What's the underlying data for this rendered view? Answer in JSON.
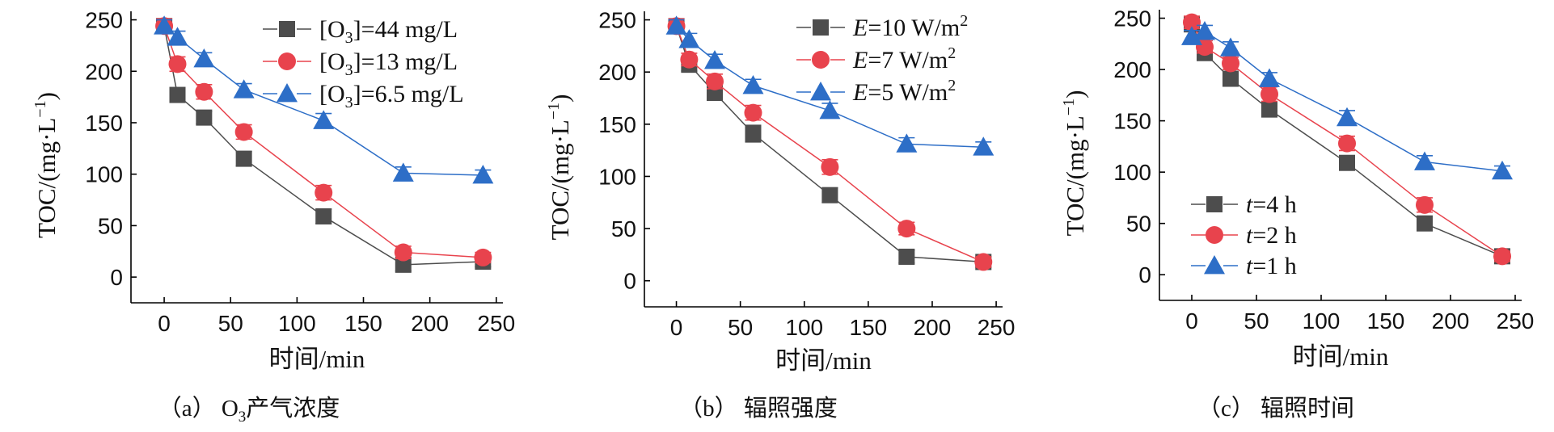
{
  "figure": {
    "colors": {
      "s1": "#4d4d4d",
      "s2": "#e8434d",
      "s3": "#2d6ec7"
    },
    "panels": [
      {
        "caption": {
          "prefix": "（a） O",
          "sub": "3",
          "suffix": "产气浓度"
        },
        "legend": [
          {
            "pre": "[O",
            "sub": "3",
            "post": "]=44 mg/L",
            "italic": "",
            "sup": ""
          },
          {
            "pre": "[O",
            "sub": "3",
            "post": "]=13 mg/L",
            "italic": "",
            "sup": ""
          },
          {
            "pre": "[O",
            "sub": "3",
            "post": "]=6.5 mg/L",
            "italic": "",
            "sup": ""
          }
        ]
      },
      {
        "caption": {
          "prefix": "（b） 辐照强度",
          "sub": "",
          "suffix": ""
        },
        "legend": [
          {
            "pre": "",
            "sub": "",
            "italic": "E",
            "post": "=10 W/m",
            "sup": "2"
          },
          {
            "pre": "",
            "sub": "",
            "italic": "E",
            "post": "=7 W/m",
            "sup": "2"
          },
          {
            "pre": "",
            "sub": "",
            "italic": "E",
            "post": "=5 W/m",
            "sup": "2"
          }
        ]
      },
      {
        "caption": {
          "prefix": "（c） 辐照时间",
          "sub": "",
          "suffix": ""
        },
        "legend": [
          {
            "pre": "",
            "sub": "",
            "italic": "t",
            "post": "=4 h",
            "sup": ""
          },
          {
            "pre": "",
            "sub": "",
            "italic": "t",
            "post": "=2 h",
            "sup": ""
          },
          {
            "pre": "",
            "sub": "",
            "italic": "t",
            "post": "=1 h",
            "sup": ""
          }
        ]
      }
    ]
  },
  "chart_data": [
    {
      "type": "line",
      "title": "(a) O3产气浓度",
      "xlabel": "时间/min",
      "ylabel": {
        "main": "TOC/(mg·L",
        "sup": "−1",
        "close": ")"
      },
      "xlim": [
        -25,
        255
      ],
      "ylim": [
        -25,
        252
      ],
      "xticks": [
        0,
        50,
        100,
        150,
        200,
        250
      ],
      "yticks": [
        0,
        50,
        100,
        150,
        200,
        250
      ],
      "legend_position": "top-right",
      "series": [
        {
          "name": "[O3]=44 mg/L",
          "marker": "square",
          "x": [
            0,
            10,
            30,
            60,
            120,
            180,
            240
          ],
          "y": [
            244,
            177,
            155,
            115,
            59,
            12,
            15
          ],
          "err": [
            7,
            7,
            6,
            7,
            7,
            6,
            5
          ]
        },
        {
          "name": "[O3]=13 mg/L",
          "marker": "circle",
          "x": [
            0,
            10,
            30,
            60,
            120,
            180,
            240
          ],
          "y": [
            244,
            207,
            180,
            141,
            82,
            24,
            19
          ],
          "err": [
            7,
            7,
            7,
            7,
            7,
            6,
            5
          ]
        },
        {
          "name": "[O3]=6.5 mg/L",
          "marker": "triangle",
          "x": [
            0,
            10,
            30,
            60,
            120,
            180,
            240
          ],
          "y": [
            244,
            233,
            212,
            182,
            152,
            101,
            99
          ],
          "err": [
            6,
            6,
            6,
            6,
            7,
            6,
            5
          ]
        }
      ]
    },
    {
      "type": "line",
      "title": "(b) 辐照强度",
      "xlabel": "时间/min",
      "ylabel": {
        "main": "TOC/(mg·L",
        "sup": "−1",
        "close": ")"
      },
      "xlim": [
        -25,
        255
      ],
      "ylim": [
        -25,
        252
      ],
      "xticks": [
        0,
        50,
        100,
        150,
        200,
        250
      ],
      "yticks": [
        0,
        50,
        100,
        150,
        200,
        250
      ],
      "legend_position": "top-right",
      "series": [
        {
          "name": "E=10 W/m2",
          "marker": "square",
          "x": [
            0,
            10,
            30,
            60,
            120,
            180,
            240
          ],
          "y": [
            244,
            207,
            180,
            141,
            82,
            23,
            18
          ],
          "err": [
            7,
            6,
            7,
            8,
            7,
            6,
            5
          ]
        },
        {
          "name": "E=7 W/m2",
          "marker": "circle",
          "x": [
            0,
            10,
            30,
            60,
            120,
            180,
            240
          ],
          "y": [
            244,
            212,
            191,
            161,
            109,
            50,
            18
          ],
          "err": [
            7,
            6,
            7,
            7,
            7,
            6,
            5
          ]
        },
        {
          "name": "E=5 W/m2",
          "marker": "triangle",
          "x": [
            0,
            10,
            30,
            60,
            120,
            180,
            240
          ],
          "y": [
            244,
            231,
            211,
            187,
            163,
            131,
            128
          ],
          "err": [
            6,
            6,
            6,
            6,
            7,
            6,
            5
          ]
        }
      ]
    },
    {
      "type": "line",
      "title": "(c) 辐照时间",
      "xlabel": "时间/min",
      "ylabel": {
        "main": "TOC/(mg·L",
        "sup": "−1",
        "close": ")"
      },
      "xlim": [
        -25,
        255
      ],
      "ylim": [
        -25,
        252
      ],
      "xticks": [
        0,
        50,
        100,
        150,
        200,
        250
      ],
      "yticks": [
        0,
        50,
        100,
        150,
        200,
        250
      ],
      "legend_position": "bottom-left",
      "series": [
        {
          "name": "t=4 h",
          "marker": "square",
          "x": [
            0,
            10,
            30,
            60,
            120,
            180,
            240
          ],
          "y": [
            244,
            216,
            191,
            161,
            109,
            50,
            18
          ],
          "err": [
            7,
            6,
            7,
            6,
            7,
            7,
            5
          ]
        },
        {
          "name": "t=2 h",
          "marker": "circle",
          "x": [
            0,
            10,
            30,
            60,
            120,
            180,
            240
          ],
          "y": [
            246,
            222,
            206,
            176,
            128,
            68,
            18
          ],
          "err": [
            6,
            6,
            6,
            7,
            7,
            7,
            5
          ]
        },
        {
          "name": "t=1 h",
          "marker": "triangle",
          "x": [
            0,
            10,
            30,
            60,
            120,
            180,
            240
          ],
          "y": [
            232,
            237,
            221,
            191,
            153,
            110,
            101
          ],
          "err": [
            6,
            6,
            6,
            6,
            7,
            6,
            5
          ]
        }
      ]
    }
  ]
}
